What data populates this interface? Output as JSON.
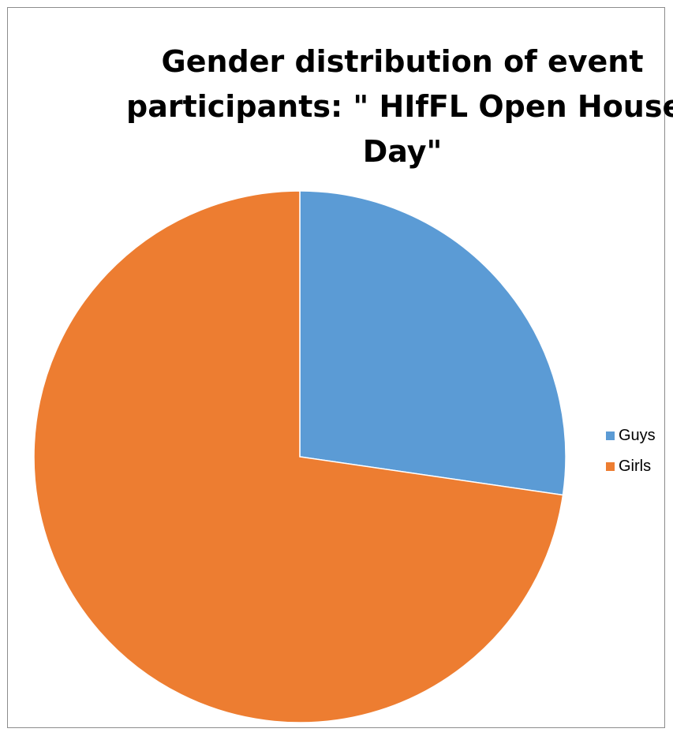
{
  "chart_data": {
    "type": "pie",
    "title": "Gender distribution of event participants: \" HIfFL Open House Day\"",
    "title_lines": [
      "Gender distribution of event",
      "participants: \" HIfFL Open House",
      "Day\""
    ],
    "categories": [
      "Guys",
      "Girls"
    ],
    "values": [
      27.3,
      72.7
    ],
    "colors": [
      "#5b9bd5",
      "#ed7d31"
    ],
    "legend": "right"
  }
}
